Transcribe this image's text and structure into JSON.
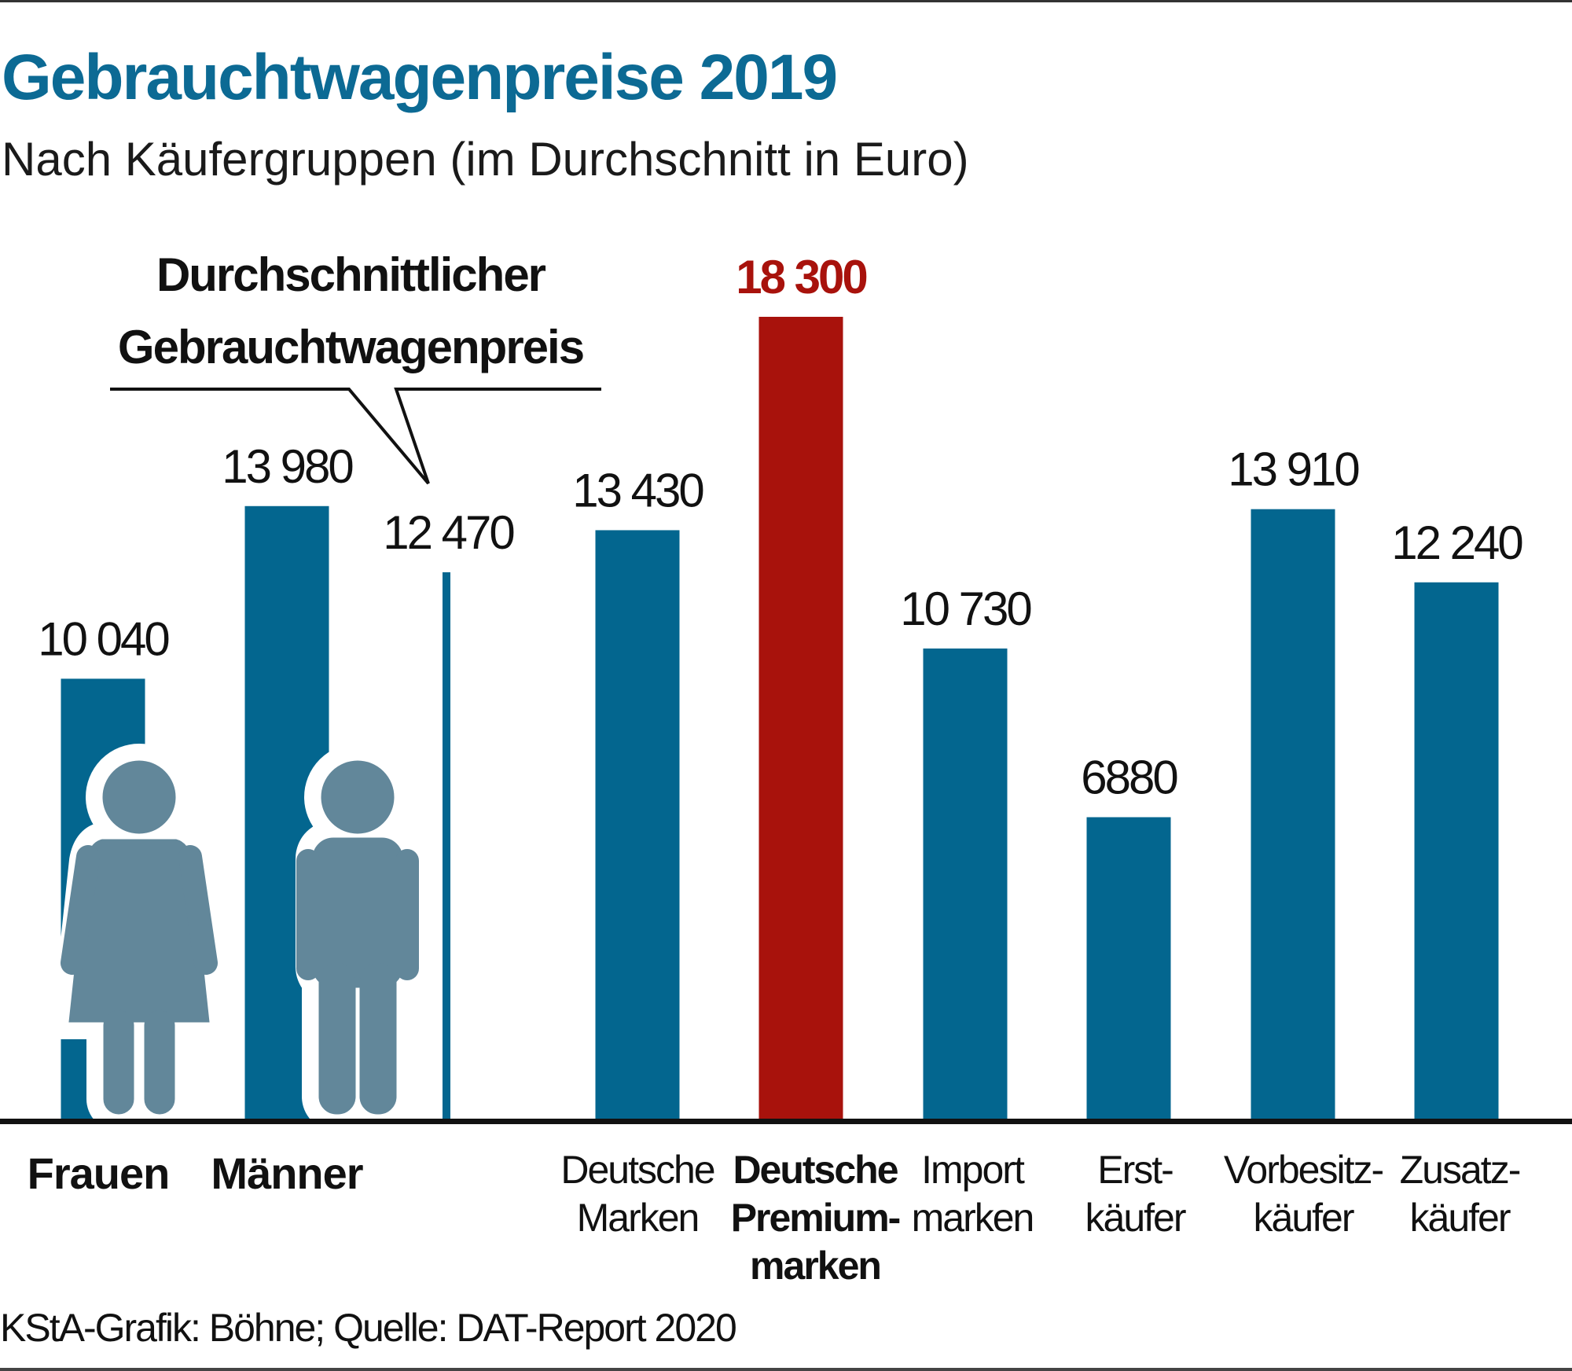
{
  "title": "Gebrauchtwagenpreise 2019",
  "subtitle": "Nach Käufergruppen (im Durchschnitt in Euro)",
  "footnote": "KStA-Grafik: Böhne; Quelle: DAT-Report 2020",
  "colors": {
    "bar": "#03668f",
    "highlight": "#a8120c",
    "person": "#62879a",
    "title": "#0c6a94"
  },
  "callout": {
    "line1": "Durchschnittlicher",
    "line2": "Gebrauchtwagenpreis"
  },
  "chart_data": {
    "type": "bar",
    "title": "Gebrauchtwagenpreise 2019",
    "subtitle": "Nach Käufergruppen (im Durchschnitt in Euro)",
    "ylim": [
      0,
      18300
    ],
    "grid": false,
    "categories": [
      {
        "lines": [
          "Frauen"
        ],
        "style": "big",
        "icon": "woman-icon"
      },
      {
        "lines": [
          "Männer"
        ],
        "style": "big",
        "icon": "man-icon"
      },
      {
        "lines": [],
        "style": "average"
      },
      {
        "lines": [
          "Deutsche",
          "Marken"
        ],
        "style": "normal"
      },
      {
        "lines": [
          "Deutsche",
          "Premium-",
          "marken"
        ],
        "style": "bold"
      },
      {
        "lines": [
          "Import",
          "marken"
        ],
        "style": "normal"
      },
      {
        "lines": [
          "Erst-",
          "käufer"
        ],
        "style": "normal"
      },
      {
        "lines": [
          "Vorbesitz-",
          "käufer"
        ],
        "style": "normal"
      },
      {
        "lines": [
          "Zusatz-",
          "käufer"
        ],
        "style": "normal"
      }
    ],
    "values": [
      10040,
      13980,
      12470,
      13430,
      18300,
      10730,
      6880,
      13910,
      12240
    ],
    "value_labels": [
      "10 040",
      "13 980",
      "12 470",
      "13 430",
      "18 300",
      "10 730",
      "6880",
      "13 910",
      "12 240"
    ],
    "highlight_index": 4,
    "average_index": 2
  }
}
